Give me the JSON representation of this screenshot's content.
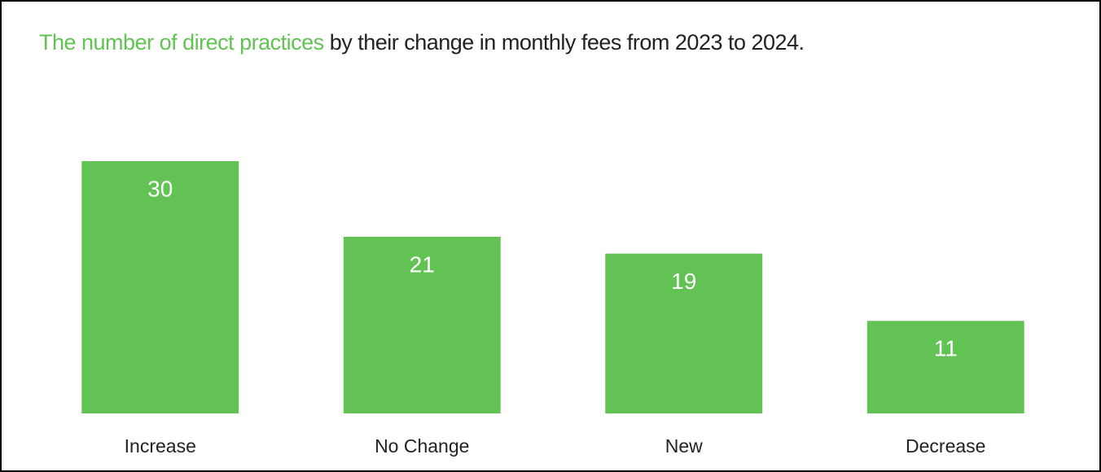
{
  "chart_data": {
    "type": "bar",
    "title": {
      "highlight": "The number of direct practices",
      "rest": "by their change in monthly fees from 2023 to 2024."
    },
    "categories": [
      "Increase",
      "No Change",
      "New",
      "Decrease"
    ],
    "values": [
      30,
      21,
      19,
      11
    ],
    "color": "#62c254",
    "title_highlight_color": "#62c254"
  }
}
